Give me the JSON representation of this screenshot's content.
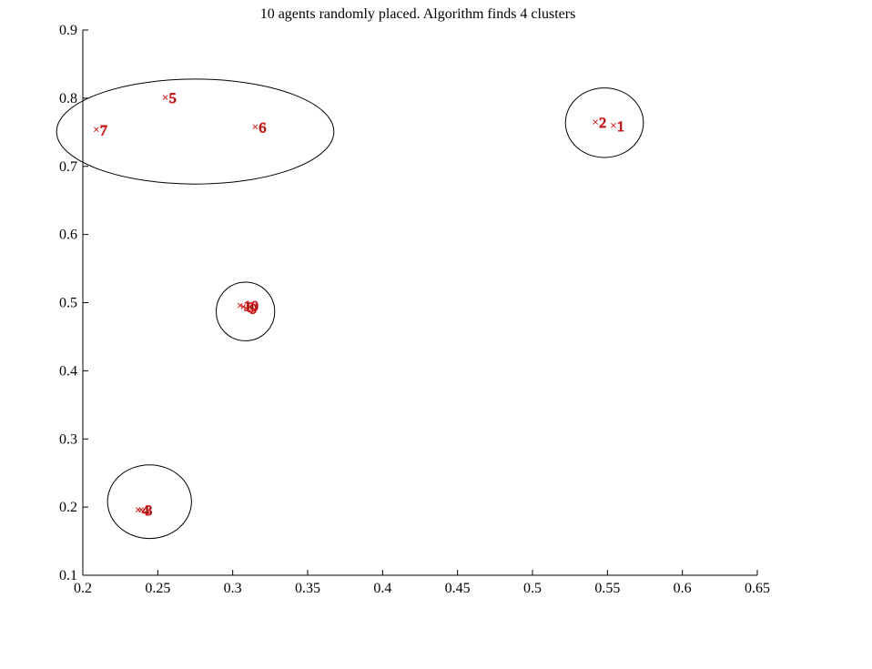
{
  "chart_data": {
    "type": "scatter",
    "title": "10 agents randomly placed. Algorithm finds 4 clusters",
    "xlabel": "",
    "ylabel": "",
    "xlim": [
      0.2,
      0.65
    ],
    "ylim": [
      0.1,
      0.9
    ],
    "xticks": [
      "0.2",
      "0.25",
      "0.3",
      "0.35",
      "0.4",
      "0.45",
      "0.5",
      "0.55",
      "0.6",
      "0.65"
    ],
    "yticks": [
      "0.1",
      "0.2",
      "0.3",
      "0.4",
      "0.5",
      "0.6",
      "0.7",
      "0.8",
      "0.9"
    ],
    "grid": false,
    "marker_color": "#d42020",
    "points": [
      {
        "label": "1",
        "x": 0.554,
        "y": 0.76
      },
      {
        "label": "2",
        "x": 0.542,
        "y": 0.765
      },
      {
        "label": "3",
        "x": 0.239,
        "y": 0.196
      },
      {
        "label": "4",
        "x": 0.237,
        "y": 0.196
      },
      {
        "label": "5",
        "x": 0.255,
        "y": 0.801
      },
      {
        "label": "6",
        "x": 0.315,
        "y": 0.758
      },
      {
        "label": "7",
        "x": 0.209,
        "y": 0.754
      },
      {
        "label": "8",
        "x": 0.307,
        "y": 0.494
      },
      {
        "label": "9",
        "x": 0.309,
        "y": 0.492
      },
      {
        "label": "10",
        "x": 0.305,
        "y": 0.496
      }
    ],
    "clusters": [
      {
        "members": [
          "5",
          "6",
          "7"
        ],
        "cx": 0.275,
        "cy": 0.751,
        "rx": 0.0925,
        "ry": 0.077
      },
      {
        "members": [
          "1",
          "2"
        ],
        "cx": 0.548,
        "cy": 0.764,
        "rx": 0.026,
        "ry": 0.051
      },
      {
        "members": [
          "8",
          "9",
          "10"
        ],
        "cx": 0.3085,
        "cy": 0.487,
        "rx": 0.0195,
        "ry": 0.043
      },
      {
        "members": [
          "3",
          "4"
        ],
        "cx": 0.2445,
        "cy": 0.208,
        "rx": 0.028,
        "ry": 0.054
      }
    ]
  }
}
